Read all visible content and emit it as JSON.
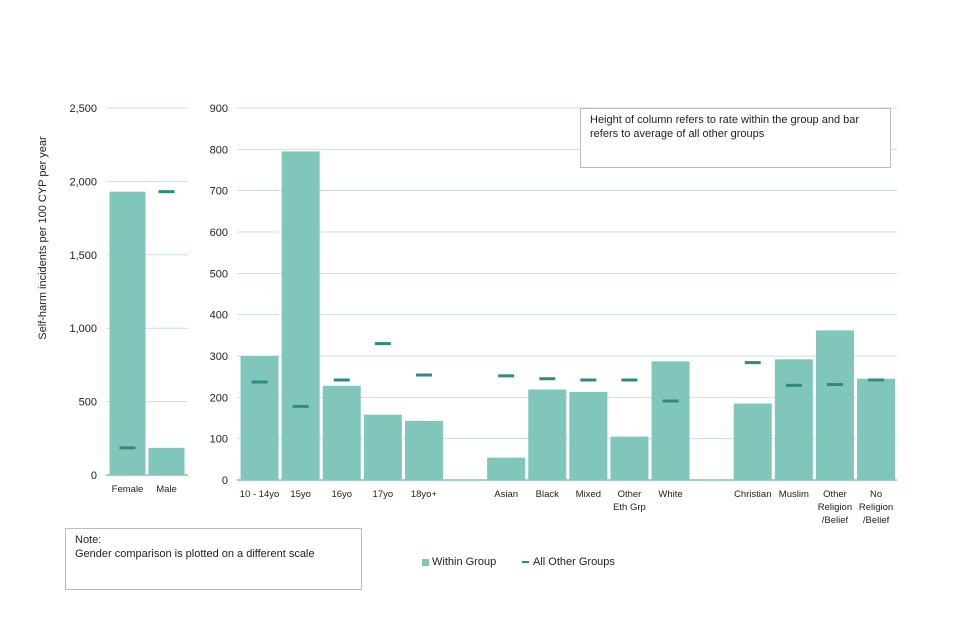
{
  "colors": {
    "within_group": "#80c6bb",
    "all_other_groups": "#2e8b80",
    "gridline": "#c6e3df",
    "axis": "#4a9d92"
  },
  "annotation": "Height of column refers to rate within the group and bar refers to average of all other groups",
  "note": {
    "title": "Note:",
    "text": "Gender comparison is plotted on a different scale"
  },
  "legend": {
    "within_group": "Within Group",
    "all_other_groups": "All Other Groups"
  },
  "chart_data": [
    {
      "type": "bar",
      "title": "",
      "ylabel": "Self-harm incidents per 100 CYP per year",
      "xlabel": "",
      "ylim": [
        0,
        2500
      ],
      "yticks": [
        0,
        500,
        1000,
        1500,
        2000,
        2500
      ],
      "ytick_labels": [
        "0",
        "500",
        "1,000",
        "1,500",
        "2,000",
        "2,500"
      ],
      "grid": true,
      "categories": [
        "Female",
        "Male"
      ],
      "series": [
        {
          "name": "Within Group",
          "style": "column",
          "values": [
            1930,
            185
          ]
        },
        {
          "name": "All Other Groups",
          "style": "dash-marker",
          "values": [
            185,
            1930
          ]
        }
      ]
    },
    {
      "type": "bar",
      "title": "",
      "xlabel": "",
      "ylim": [
        0,
        900
      ],
      "yticks": [
        0,
        100,
        200,
        300,
        400,
        500,
        600,
        700,
        800,
        900
      ],
      "ytick_labels": [
        "0",
        "100",
        "200",
        "300",
        "400",
        "500",
        "600",
        "700",
        "800",
        "900"
      ],
      "grid": true,
      "legend": "bottom-center",
      "categories": [
        "10 - 14yo",
        "15yo",
        "16yo",
        "17yo",
        "18yo+",
        "",
        "Asian",
        "Black",
        "Mixed",
        "Other Eth Grp",
        "White",
        "",
        "Christian",
        "Muslim",
        "Other Religion /Belief",
        "No Religion /Belief"
      ],
      "category_lines": [
        [
          "10 - 14yo"
        ],
        [
          "15yo"
        ],
        [
          "16yo"
        ],
        [
          "17yo"
        ],
        [
          "18yo+"
        ],
        [],
        [
          "Asian"
        ],
        [
          "Black"
        ],
        [
          "Mixed"
        ],
        [
          "Other",
          "Eth Grp"
        ],
        [
          "White"
        ],
        [],
        [
          "Christian"
        ],
        [
          "Muslim"
        ],
        [
          "Other",
          "Religion",
          "/Belief"
        ],
        [
          "No",
          "Religion",
          "/Belief"
        ]
      ],
      "series": [
        {
          "name": "Within Group",
          "style": "column",
          "values": [
            300,
            795,
            228,
            158,
            143,
            null,
            54,
            219,
            213,
            105,
            287,
            null,
            185,
            292,
            362,
            245
          ]
        },
        {
          "name": "All Other Groups",
          "style": "dash-marker",
          "values": [
            237,
            178,
            242,
            330,
            254,
            null,
            252,
            245,
            242,
            242,
            191,
            null,
            284,
            229,
            231,
            242
          ]
        }
      ]
    }
  ]
}
